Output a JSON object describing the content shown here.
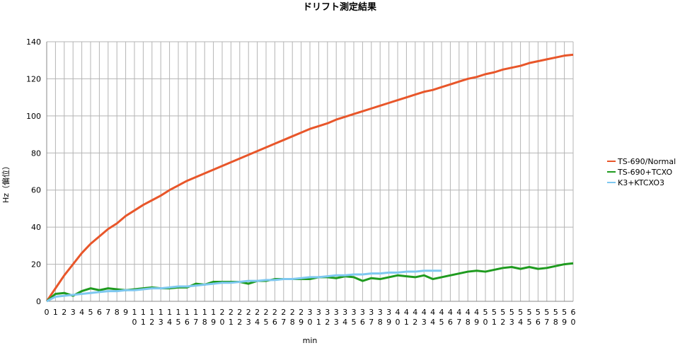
{
  "chart_data": {
    "type": "line",
    "title": "ドリフト測定結果",
    "x_label": "min",
    "y_label": "Hz（偏位）",
    "categories": [
      "0",
      "1",
      "2",
      "3",
      "4",
      "5",
      "6",
      "7",
      "8",
      "9",
      "10",
      "11",
      "12",
      "13",
      "14",
      "15",
      "16",
      "17",
      "18",
      "19",
      "20",
      "21",
      "22",
      "23",
      "24",
      "25",
      "26",
      "27",
      "28",
      "29",
      "30",
      "31",
      "32",
      "33",
      "34",
      "35",
      "36",
      "37",
      "38",
      "39",
      "40",
      "41",
      "42",
      "43",
      "44",
      "45",
      "46",
      "47",
      "48",
      "49",
      "50",
      "51",
      "52",
      "53",
      "54",
      "55",
      "56",
      "57",
      "58",
      "59",
      "60"
    ],
    "series": [
      {
        "name": "TS-690/Normal",
        "color": "#e8562a",
        "values": [
          0,
          7,
          14,
          20,
          26,
          31,
          35,
          39,
          42,
          46,
          49,
          52,
          54.5,
          57,
          60,
          62.5,
          65,
          67,
          69,
          71,
          73,
          75,
          77,
          79,
          81,
          83,
          85,
          87,
          89,
          91,
          93,
          94.5,
          96,
          98,
          99.5,
          101,
          102.5,
          104,
          105.5,
          107,
          108.5,
          110,
          111.5,
          113,
          114,
          115.5,
          117,
          118.5,
          120,
          121,
          122.5,
          123.5,
          125,
          126,
          127,
          128.5,
          129.5,
          130.5,
          131.5,
          132.5,
          133
        ]
      },
      {
        "name": "TS-690+TCXO",
        "color": "#1f9b1f",
        "values": [
          0,
          4,
          4.5,
          3,
          5.5,
          7,
          6,
          7,
          6.5,
          6,
          6.5,
          7,
          7.5,
          7,
          7,
          7.5,
          7.5,
          9.5,
          9,
          10.5,
          10.5,
          10.5,
          10.5,
          9.5,
          11,
          11,
          12,
          12,
          12,
          12,
          12,
          13,
          13,
          12.5,
          13.5,
          13,
          11,
          12.5,
          12,
          13,
          14,
          13.5,
          13,
          14,
          12,
          13,
          14,
          15,
          16,
          16.5,
          16,
          17,
          18,
          18.5,
          17.5,
          18.5,
          17.5,
          18,
          19,
          20,
          20.5
        ]
      },
      {
        "name": "K3+KTCXO3",
        "color": "#7ec8f0",
        "values": [
          0,
          2.5,
          3,
          3.5,
          4,
          4.5,
          5,
          5.5,
          5.5,
          6,
          6,
          6.5,
          7,
          7,
          7.5,
          8,
          8,
          8.5,
          9,
          9.5,
          10,
          10,
          10.5,
          11,
          11,
          11.5,
          11.5,
          12,
          12,
          12.5,
          13,
          13,
          13.5,
          14,
          14,
          14.5,
          14.5,
          15,
          15,
          15.5,
          15.5,
          16,
          16,
          16.5,
          16.5,
          16.5,
          null,
          null,
          null,
          null,
          null,
          null,
          null,
          null,
          null,
          null,
          null,
          null,
          null,
          null,
          null
        ]
      }
    ],
    "ylim": [
      0,
      140
    ],
    "yticks": [
      0,
      20,
      40,
      60,
      80,
      100,
      120,
      140
    ],
    "grid": true,
    "legend": "right"
  }
}
